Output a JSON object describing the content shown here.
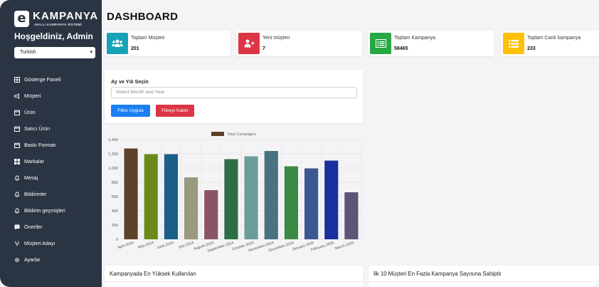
{
  "brand": {
    "logo_letter": "e",
    "name": "KAMPANYA",
    "tagline": "AKILLI KAMPANYA SİSTEMİ"
  },
  "welcome": "Hoşgeldiniz, Admin",
  "language": {
    "selected": "Turkish"
  },
  "sidebar": {
    "items": [
      {
        "label": "Gösterge Paneli",
        "icon": "dashboard-icon"
      },
      {
        "label": "Müşteri",
        "icon": "megaphone-icon"
      },
      {
        "label": "Ürün",
        "icon": "calendar-icon"
      },
      {
        "label": "Satıcı Ürün",
        "icon": "calendar-icon"
      },
      {
        "label": "Baskı Formatı",
        "icon": "calendar-icon"
      },
      {
        "label": "Markalar",
        "icon": "grid-icon"
      },
      {
        "label": "Mesaj",
        "icon": "bell-icon"
      },
      {
        "label": "Bildirimler",
        "icon": "bell-icon"
      },
      {
        "label": "Bildirim geçmişleri",
        "icon": "bell-icon"
      },
      {
        "label": "Öneriler",
        "icon": "comment-icon"
      },
      {
        "label": "Müşteri Adayı",
        "icon": "fork-icon"
      },
      {
        "label": "Ayarlar",
        "icon": "gear-icon"
      }
    ]
  },
  "page": {
    "title": "DASHBOARD"
  },
  "stats": [
    {
      "label": "Toplam Müşteri",
      "value": "201",
      "color": "#17a2b8",
      "icon": "users-icon"
    },
    {
      "label": "Yeni müşteri",
      "value": "7",
      "color": "#dc3545",
      "icon": "user-plus-icon"
    },
    {
      "label": "Toplam Kampanya",
      "value": "58465",
      "color": "#28a745",
      "icon": "list-alt-icon"
    },
    {
      "label": "Toplam Canlı kampanya",
      "value": "233",
      "color": "#ffc107",
      "icon": "list-icon"
    }
  ],
  "filter": {
    "title": "Ay ve Yılı Seçin",
    "placeholder": "Select Month and Year",
    "apply_label": "Filtre Uygula",
    "clear_label": "Filtreyi Kaldır"
  },
  "chart_data": {
    "type": "bar",
    "legend": "Total Campaigns",
    "legend_placement": "top-center",
    "categories": [
      "April-2024",
      "May-2024",
      "June-2024",
      "July-2024",
      "August-2024",
      "September-2024",
      "October-2024",
      "November-2024",
      "December-2024",
      "January-2025",
      "February-2025",
      "March-2025"
    ],
    "values": [
      1275,
      1195,
      1195,
      870,
      690,
      1125,
      1165,
      1240,
      1025,
      995,
      1105,
      660
    ],
    "colors": [
      "#5c4128",
      "#6b8a1a",
      "#1a5e8a",
      "#9a9a80",
      "#8a5466",
      "#2e6e46",
      "#6a9c9c",
      "#4a7280",
      "#3a8a46",
      "#3c5890",
      "#1a309e",
      "#5e5676"
    ],
    "yticks": [
      "0",
      "200",
      "400",
      "600",
      "800",
      "1,000",
      "1,200",
      "1,400"
    ],
    "ylim": [
      0,
      1400
    ],
    "grid": true
  },
  "bottom": {
    "left_title": "Kampanyada En Yüksek Kullanılan",
    "right_title": "İlk 10 Müşteri En Fazla Kampanya Sayısına Sahiptir"
  }
}
